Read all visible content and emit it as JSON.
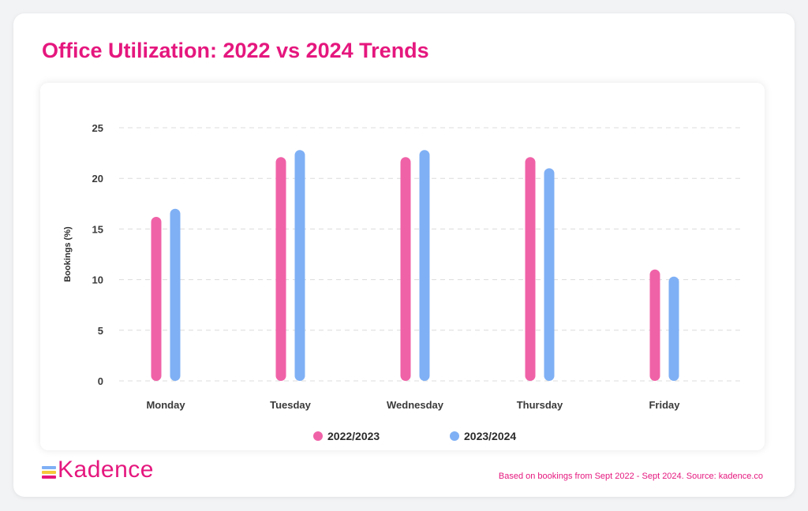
{
  "page": {
    "title": "Office Utilization: 2022 vs 2024 Trends",
    "logo_text": "Kadence",
    "footnote": "Based on bookings from Sept 2022 - Sept 2024. Source: kadence.co"
  },
  "colors": {
    "accent": "#e5177e",
    "series1": "#f062a8",
    "series2": "#7fb0f5",
    "grid": "#dcdcdc",
    "axis_text": "#3a3a3a"
  },
  "chart_data": {
    "type": "bar",
    "title": "Office Utilization: 2022 vs 2024 Trends",
    "xlabel": "",
    "ylabel": "Bookings (%)",
    "ylim": [
      0,
      25
    ],
    "yticks": [
      0,
      5,
      10,
      15,
      20,
      25
    ],
    "grid": true,
    "legend_position": "bottom",
    "categories": [
      "Monday",
      "Tuesday",
      "Wednesday",
      "Thursday",
      "Friday"
    ],
    "series": [
      {
        "name": "2022/2023",
        "color": "#f062a8",
        "values": [
          16.2,
          22.1,
          22.1,
          22.1,
          11.0
        ]
      },
      {
        "name": "2023/2024",
        "color": "#7fb0f5",
        "values": [
          17.0,
          22.8,
          22.8,
          21.0,
          10.3
        ]
      }
    ]
  }
}
